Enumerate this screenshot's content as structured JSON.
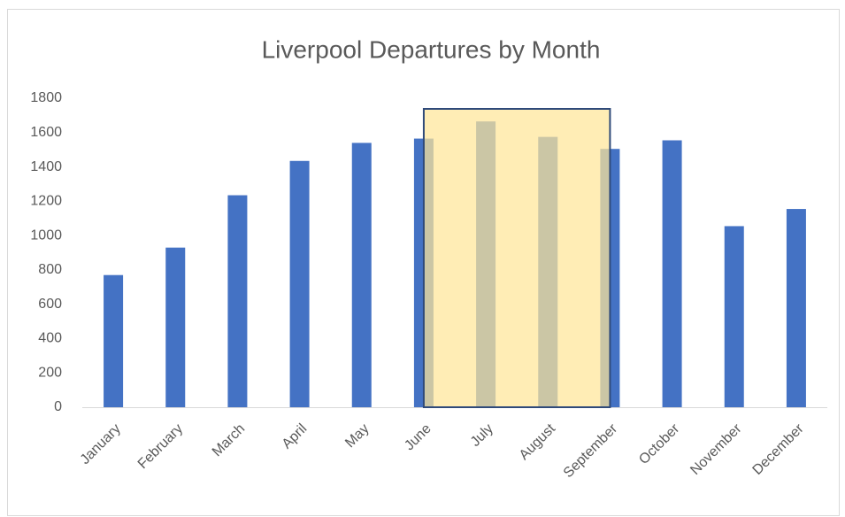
{
  "chart_data": {
    "type": "bar",
    "title": "Liverpool Departures by Month",
    "categories": [
      "January",
      "February",
      "March",
      "April",
      "May",
      "June",
      "July",
      "August",
      "September",
      "October",
      "November",
      "December"
    ],
    "values": [
      770,
      930,
      1235,
      1435,
      1540,
      1565,
      1665,
      1575,
      1505,
      1555,
      1055,
      1155
    ],
    "color": "#4472c4",
    "ylim": [
      0,
      1800
    ],
    "yticks": [
      0,
      200,
      400,
      600,
      800,
      1000,
      1200,
      1400,
      1600,
      1800
    ],
    "grid": false
  }
}
